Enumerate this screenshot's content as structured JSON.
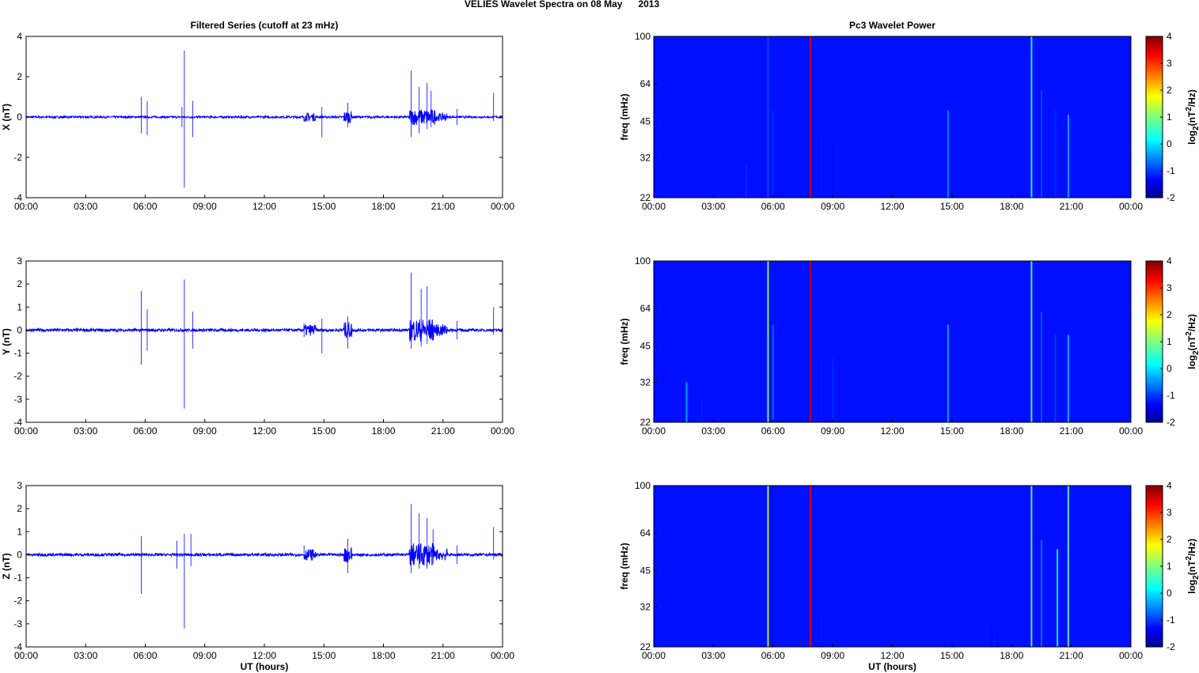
{
  "figure": {
    "title": "VELIES Wavelet Spectra on 08 May      2013"
  },
  "chart_data": [
    {
      "type": "line",
      "panel": "filtered-x",
      "title": "Filtered Series (cutoff at 23 mHz)",
      "xlabel": "",
      "ylabel": "X (nT)",
      "xticks": [
        "00:00",
        "03:00",
        "06:00",
        "09:00",
        "12:00",
        "15:00",
        "18:00",
        "21:00",
        "00:00"
      ],
      "xlim": [
        0,
        24
      ],
      "ylim": [
        -4,
        4
      ],
      "yticks": [
        -4,
        -2,
        0,
        2,
        4
      ],
      "line_color": "#0000ff",
      "baseline_noise": 0.05,
      "spikes": [
        {
          "t": 5.8,
          "max": 1.0,
          "min": -0.8
        },
        {
          "t": 6.1,
          "max": 0.8,
          "min": -0.9
        },
        {
          "t": 7.85,
          "max": 0.5,
          "min": -0.5
        },
        {
          "t": 7.97,
          "max": 3.3,
          "min": -3.5
        },
        {
          "t": 8.4,
          "max": 0.8,
          "min": -1.0
        },
        {
          "t": 14.2,
          "max": 0.2,
          "min": -0.2
        },
        {
          "t": 14.9,
          "max": 0.5,
          "min": -1.0
        },
        {
          "t": 16.2,
          "max": 0.7,
          "min": -0.5
        },
        {
          "t": 19.4,
          "max": 2.3,
          "min": -1.0
        },
        {
          "t": 19.8,
          "max": 1.5,
          "min": -0.8
        },
        {
          "t": 20.2,
          "max": 1.7,
          "min": -0.6
        },
        {
          "t": 20.4,
          "max": 1.3,
          "min": -0.5
        },
        {
          "t": 21.7,
          "max": 0.4,
          "min": -0.4
        },
        {
          "t": 23.55,
          "max": 1.2,
          "min": -0.2
        }
      ],
      "active_intervals": [
        {
          "start": 14.0,
          "end": 14.6,
          "amp": 0.2
        },
        {
          "start": 16.0,
          "end": 16.4,
          "amp": 0.3
        },
        {
          "start": 19.3,
          "end": 20.6,
          "amp": 0.4
        },
        {
          "start": 20.6,
          "end": 21.2,
          "amp": 0.2
        }
      ]
    },
    {
      "type": "line",
      "panel": "filtered-y",
      "title": "",
      "xlabel": "",
      "ylabel": "Y (nT)",
      "xticks": [
        "00:00",
        "03:00",
        "06:00",
        "09:00",
        "12:00",
        "15:00",
        "18:00",
        "21:00",
        "00:00"
      ],
      "xlim": [
        0,
        24
      ],
      "ylim": [
        -4,
        3
      ],
      "yticks": [
        -4,
        -3,
        -2,
        -1,
        0,
        1,
        2,
        3
      ],
      "line_color": "#0000ff",
      "baseline_noise": 0.06,
      "spikes": [
        {
          "t": 5.8,
          "max": 1.7,
          "min": -1.5
        },
        {
          "t": 6.1,
          "max": 0.9,
          "min": -0.9
        },
        {
          "t": 7.97,
          "max": 2.2,
          "min": -3.4
        },
        {
          "t": 8.4,
          "max": 0.8,
          "min": -0.8
        },
        {
          "t": 14.0,
          "max": 0.3,
          "min": -0.3
        },
        {
          "t": 14.9,
          "max": 0.5,
          "min": -1.0
        },
        {
          "t": 16.2,
          "max": 0.6,
          "min": -0.8
        },
        {
          "t": 19.4,
          "max": 2.5,
          "min": -0.8
        },
        {
          "t": 19.9,
          "max": 1.8,
          "min": -0.7
        },
        {
          "t": 20.2,
          "max": 1.9,
          "min": -0.6
        },
        {
          "t": 21.7,
          "max": 0.4,
          "min": -0.4
        },
        {
          "t": 23.55,
          "max": 1.0,
          "min": -0.2
        }
      ],
      "active_intervals": [
        {
          "start": 14.0,
          "end": 14.6,
          "amp": 0.25
        },
        {
          "start": 16.0,
          "end": 16.4,
          "amp": 0.35
        },
        {
          "start": 19.3,
          "end": 20.6,
          "amp": 0.5
        },
        {
          "start": 20.6,
          "end": 21.2,
          "amp": 0.25
        }
      ]
    },
    {
      "type": "line",
      "panel": "filtered-z",
      "title": "",
      "xlabel": "UT (hours)",
      "ylabel": "Z (nT)",
      "xticks": [
        "00:00",
        "03:00",
        "06:00",
        "09:00",
        "12:00",
        "15:00",
        "18:00",
        "21:00",
        "00:00"
      ],
      "xlim": [
        0,
        24
      ],
      "ylim": [
        -4,
        3
      ],
      "yticks": [
        -4,
        -3,
        -2,
        -1,
        0,
        1,
        2,
        3
      ],
      "line_color": "#0000ff",
      "baseline_noise": 0.06,
      "spikes": [
        {
          "t": 5.8,
          "max": 0.8,
          "min": -1.7
        },
        {
          "t": 7.6,
          "max": 0.6,
          "min": -0.6
        },
        {
          "t": 7.97,
          "max": 0.9,
          "min": -3.2
        },
        {
          "t": 8.3,
          "max": 0.9,
          "min": -0.5
        },
        {
          "t": 14.0,
          "max": 0.4,
          "min": -0.2
        },
        {
          "t": 16.2,
          "max": 0.7,
          "min": -0.8
        },
        {
          "t": 19.4,
          "max": 2.2,
          "min": -0.8
        },
        {
          "t": 19.8,
          "max": 1.8,
          "min": -0.6
        },
        {
          "t": 20.2,
          "max": 1.6,
          "min": -0.6
        },
        {
          "t": 20.5,
          "max": 1.1,
          "min": -0.4
        },
        {
          "t": 21.7,
          "max": 0.4,
          "min": -0.4
        },
        {
          "t": 23.55,
          "max": 1.2,
          "min": -0.2
        }
      ],
      "active_intervals": [
        {
          "start": 14.0,
          "end": 14.6,
          "amp": 0.25
        },
        {
          "start": 16.0,
          "end": 16.4,
          "amp": 0.35
        },
        {
          "start": 19.3,
          "end": 20.6,
          "amp": 0.5
        },
        {
          "start": 20.6,
          "end": 21.2,
          "amp": 0.25
        }
      ]
    },
    {
      "type": "heatmap",
      "panel": "wavelet-x",
      "title": "Pc3 Wavelet Power",
      "xlabel": "",
      "ylabel": "freq (mHz)",
      "xticks": [
        "00:00",
        "03:00",
        "06:00",
        "09:00",
        "12:00",
        "15:00",
        "18:00",
        "21:00",
        "00:00"
      ],
      "xlim": [
        0,
        24
      ],
      "ylim": [
        22,
        100
      ],
      "log_y": true,
      "yticks": [
        22,
        32,
        45,
        64,
        100
      ],
      "colorbar": {
        "label": "log2(nT2/Hz)",
        "ticks": [
          -2,
          -1,
          0,
          1,
          2,
          3,
          4
        ],
        "range": [
          -2,
          4
        ]
      },
      "background_level": -1.6,
      "streaks": [
        {
          "t": 4.65,
          "fmin": 22,
          "fmax": 30,
          "level": -1.0
        },
        {
          "t": 5.75,
          "fmin": 22,
          "fmax": 100,
          "level": -0.8
        },
        {
          "t": 6.0,
          "fmin": 22,
          "fmax": 50,
          "level": -1.0
        },
        {
          "t": 7.88,
          "fmin": 22,
          "fmax": 100,
          "level": 3.5
        },
        {
          "t": 8.3,
          "fmin": 22,
          "fmax": 40,
          "level": -1.2
        },
        {
          "t": 9.0,
          "fmin": 22,
          "fmax": 38,
          "level": -1.2
        },
        {
          "t": 14.8,
          "fmin": 22,
          "fmax": 50,
          "level": -0.4
        },
        {
          "t": 19.0,
          "fmin": 22,
          "fmax": 100,
          "level": 0.5
        },
        {
          "t": 19.5,
          "fmin": 22,
          "fmax": 60,
          "level": -0.8
        },
        {
          "t": 20.2,
          "fmin": 22,
          "fmax": 50,
          "level": -1.0
        },
        {
          "t": 20.85,
          "fmin": 22,
          "fmax": 48,
          "level": -0.2
        }
      ]
    },
    {
      "type": "heatmap",
      "panel": "wavelet-y",
      "title": "",
      "xlabel": "",
      "ylabel": "freq (mHz)",
      "xticks": [
        "00:00",
        "03:00",
        "06:00",
        "09:00",
        "12:00",
        "15:00",
        "18:00",
        "21:00",
        "00:00"
      ],
      "xlim": [
        0,
        24
      ],
      "ylim": [
        22,
        100
      ],
      "log_y": true,
      "yticks": [
        22,
        32,
        45,
        64,
        100
      ],
      "colorbar": {
        "label": "log2(nT2/Hz)",
        "ticks": [
          -2,
          -1,
          0,
          1,
          2,
          3,
          4
        ],
        "range": [
          -2,
          4
        ]
      },
      "background_level": -1.6,
      "streaks": [
        {
          "t": 1.65,
          "fmin": 22,
          "fmax": 32,
          "level": -0.2
        },
        {
          "t": 2.4,
          "fmin": 22,
          "fmax": 28,
          "level": -1.1
        },
        {
          "t": 5.75,
          "fmin": 22,
          "fmax": 100,
          "level": 1.2
        },
        {
          "t": 6.0,
          "fmin": 22,
          "fmax": 55,
          "level": -0.6
        },
        {
          "t": 7.88,
          "fmin": 22,
          "fmax": 100,
          "level": 3.6
        },
        {
          "t": 8.3,
          "fmin": 22,
          "fmax": 42,
          "level": -1.2
        },
        {
          "t": 9.0,
          "fmin": 22,
          "fmax": 40,
          "level": -1.0
        },
        {
          "t": 14.8,
          "fmin": 22,
          "fmax": 55,
          "level": -0.2
        },
        {
          "t": 19.0,
          "fmin": 22,
          "fmax": 100,
          "level": 0.8
        },
        {
          "t": 19.5,
          "fmin": 22,
          "fmax": 62,
          "level": -0.7
        },
        {
          "t": 20.2,
          "fmin": 22,
          "fmax": 50,
          "level": -0.9
        },
        {
          "t": 20.85,
          "fmin": 22,
          "fmax": 50,
          "level": -0.1
        }
      ]
    },
    {
      "type": "heatmap",
      "panel": "wavelet-z",
      "title": "",
      "xlabel": "UT (hours)",
      "ylabel": "freq (mHz)",
      "xticks": [
        "00:00",
        "03:00",
        "06:00",
        "09:00",
        "12:00",
        "15:00",
        "18:00",
        "21:00",
        "00:00"
      ],
      "xlim": [
        0,
        24
      ],
      "ylim": [
        22,
        100
      ],
      "log_y": true,
      "yticks": [
        22,
        32,
        45,
        64,
        100
      ],
      "colorbar": {
        "label": "log2(nT2/Hz)",
        "ticks": [
          -2,
          -1,
          0,
          1,
          2,
          3,
          4
        ],
        "range": [
          -2,
          4
        ]
      },
      "background_level": -1.6,
      "streaks": [
        {
          "t": 5.75,
          "fmin": 22,
          "fmax": 100,
          "level": 1.5
        },
        {
          "t": 7.88,
          "fmin": 22,
          "fmax": 100,
          "level": 3.4
        },
        {
          "t": 8.3,
          "fmin": 22,
          "fmax": 30,
          "level": -1.2
        },
        {
          "t": 17.0,
          "fmin": 22,
          "fmax": 28,
          "level": -1.2
        },
        {
          "t": 17.3,
          "fmin": 22,
          "fmax": 26,
          "level": -1.2
        },
        {
          "t": 19.0,
          "fmin": 22,
          "fmax": 100,
          "level": 0.9
        },
        {
          "t": 19.5,
          "fmin": 22,
          "fmax": 60,
          "level": -0.6
        },
        {
          "t": 20.3,
          "fmin": 22,
          "fmax": 55,
          "level": 0.3
        },
        {
          "t": 20.85,
          "fmin": 22,
          "fmax": 100,
          "level": 0.8
        }
      ]
    }
  ]
}
